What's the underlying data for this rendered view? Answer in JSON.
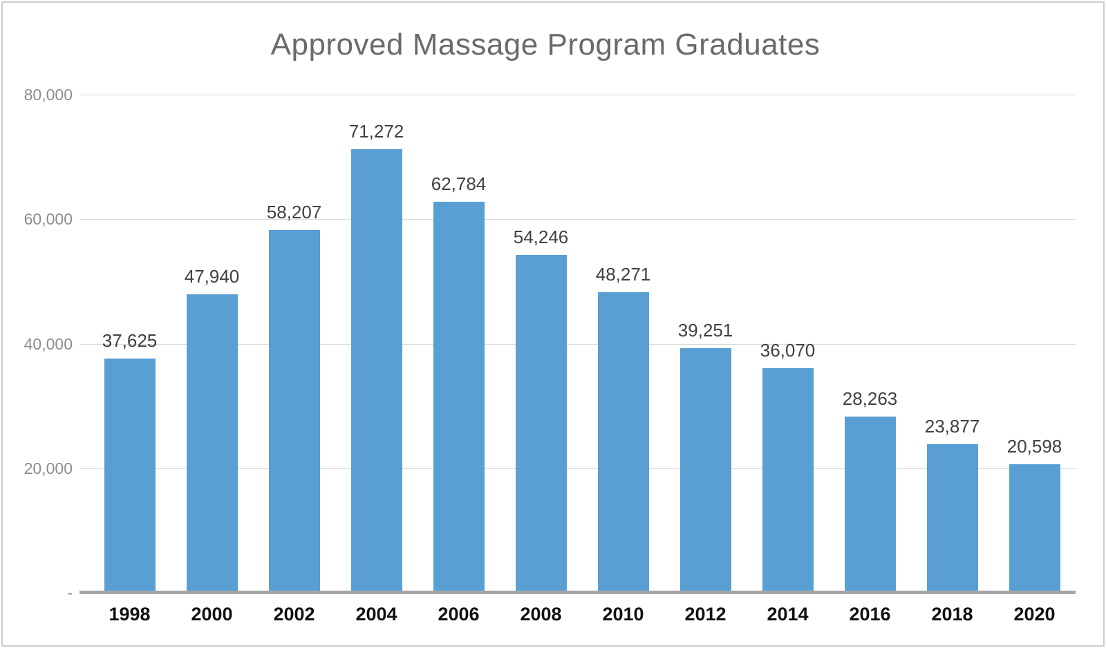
{
  "chart_data": {
    "type": "bar",
    "title": "Approved Massage Program Graduates",
    "categories": [
      "1998",
      "2000",
      "2002",
      "2004",
      "2006",
      "2008",
      "2010",
      "2012",
      "2014",
      "2016",
      "2018",
      "2020"
    ],
    "values": [
      37625,
      47940,
      58207,
      71272,
      62784,
      54246,
      48271,
      39251,
      36070,
      28263,
      23877,
      20598
    ],
    "data_labels": [
      "37,625",
      "47,940",
      "58,207",
      "71,272",
      "62,784",
      "54,246",
      "48,271",
      "39,251",
      "36,070",
      "28,263",
      "23,877",
      "20,598"
    ],
    "xlabel": "",
    "ylabel": "",
    "ylim": [
      0,
      80000
    ],
    "y_ticks": [
      {
        "label": "80,000",
        "value": 80000
      },
      {
        "label": "60,000",
        "value": 60000
      },
      {
        "label": "40,000",
        "value": 40000
      },
      {
        "label": "20,000",
        "value": 20000
      },
      {
        "label": "-",
        "value": 0
      }
    ],
    "grid": true,
    "legend": false,
    "colors": {
      "bar": "#5A9FD4",
      "axis_line": "#a6a6a6",
      "gridline": "#d9d9d9",
      "title": "#6a6a6a",
      "y_tick_label": "#8c8c8c",
      "data_label": "#404040",
      "x_tick_label": "#111111",
      "frame_border": "#cccccc"
    }
  }
}
